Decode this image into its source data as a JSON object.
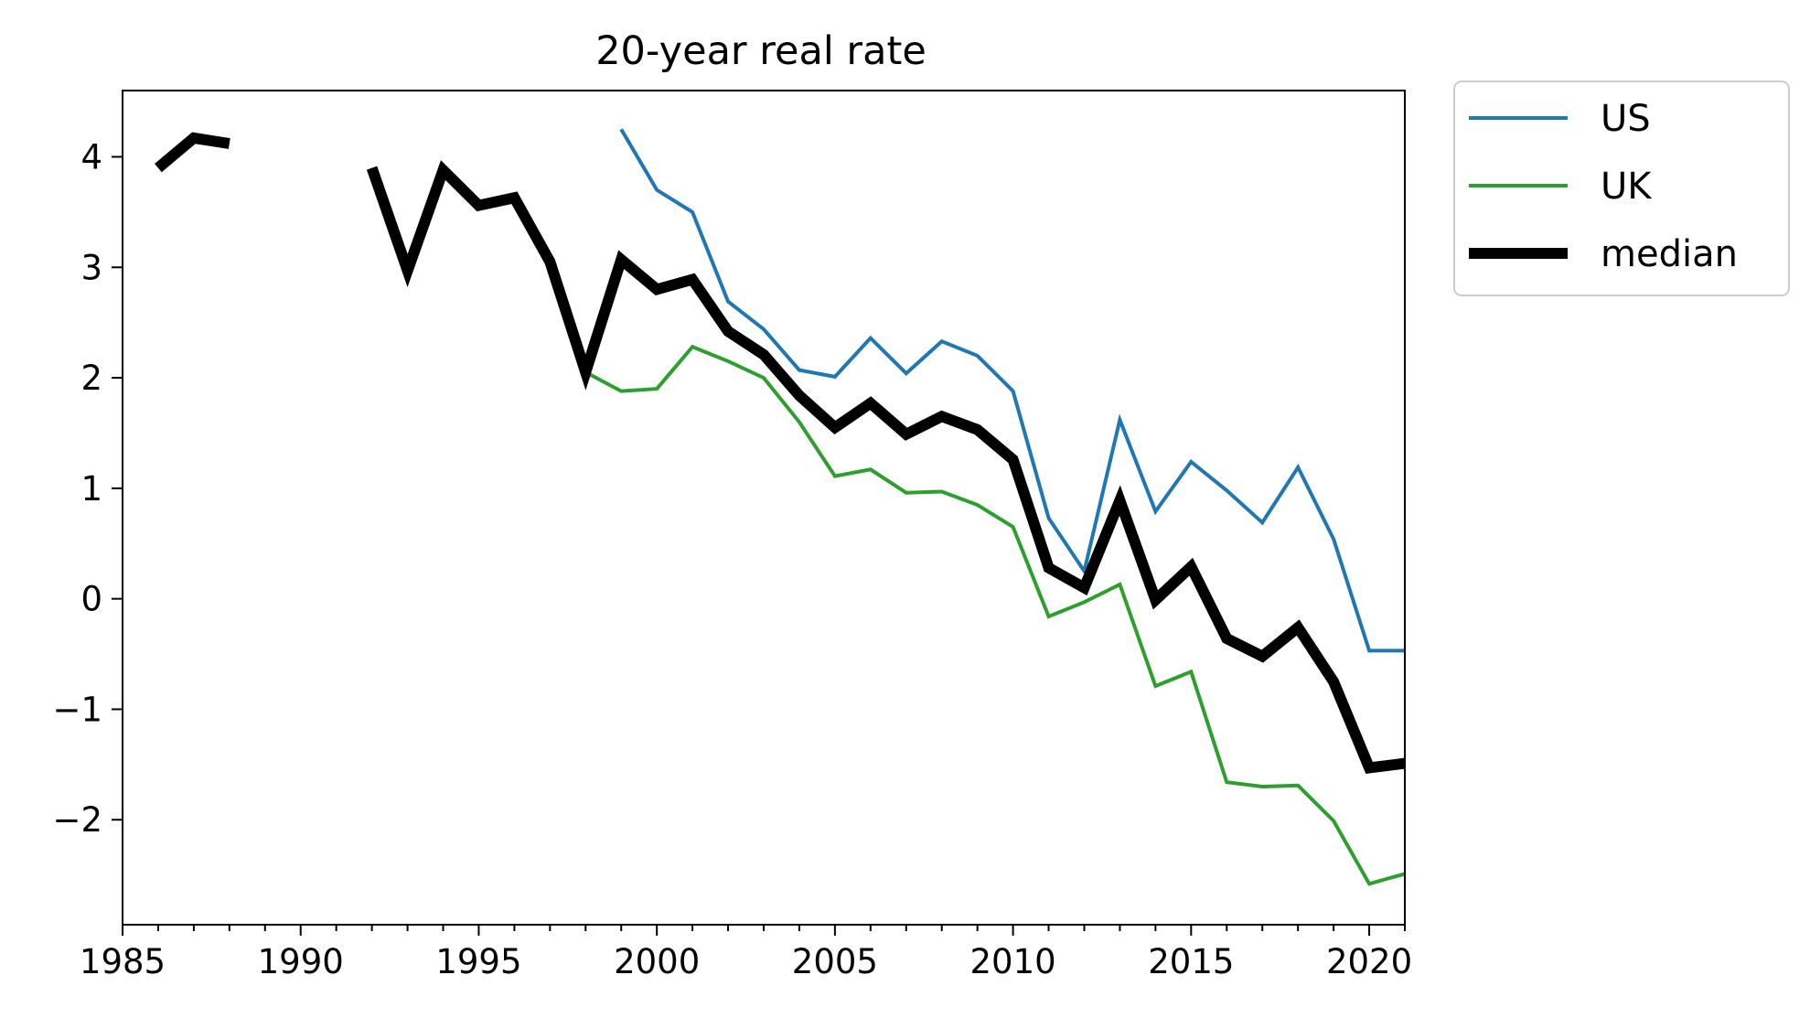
{
  "chart_data": {
    "type": "line",
    "title": "20-year real rate",
    "xlabel": "",
    "ylabel": "",
    "xlim": [
      1985,
      2021
    ],
    "ylim": [
      -2.95,
      4.6
    ],
    "xticks": [
      1985,
      1990,
      1995,
      2000,
      2005,
      2010,
      2015,
      2020
    ],
    "yticks": [
      4,
      3,
      2,
      1,
      0,
      -1,
      -2
    ],
    "ytick_labels": [
      "4",
      "3",
      "2",
      "1",
      "0",
      "−1",
      "−2"
    ],
    "grid": false,
    "legend": {
      "placement": "outside-top-right"
    },
    "series": [
      {
        "name": "US",
        "color": "#1f77b4",
        "points": [
          [
            1999,
            4.25
          ],
          [
            2000,
            3.7
          ],
          [
            2001,
            3.5
          ],
          [
            2002,
            2.69
          ],
          [
            2003,
            2.44
          ],
          [
            2004,
            2.07
          ],
          [
            2005,
            2.01
          ],
          [
            2006,
            2.36
          ],
          [
            2007,
            2.04
          ],
          [
            2008,
            2.33
          ],
          [
            2009,
            2.2
          ],
          [
            2010,
            1.88
          ],
          [
            2011,
            0.73
          ],
          [
            2012,
            0.25
          ],
          [
            2013,
            1.62
          ],
          [
            2014,
            0.79
          ],
          [
            2015,
            1.24
          ],
          [
            2016,
            0.98
          ],
          [
            2017,
            0.69
          ],
          [
            2018,
            1.19
          ],
          [
            2019,
            0.54
          ],
          [
            2020,
            -0.47
          ],
          [
            2021,
            -0.47
          ]
        ]
      },
      {
        "name": "UK",
        "color": "#2ca02c",
        "points": [
          [
            1998,
            2.05
          ],
          [
            1999,
            1.88
          ],
          [
            2000,
            1.9
          ],
          [
            2001,
            2.28
          ],
          [
            2002,
            2.15
          ],
          [
            2003,
            2.0
          ],
          [
            2004,
            1.6
          ],
          [
            2005,
            1.11
          ],
          [
            2006,
            1.17
          ],
          [
            2007,
            0.96
          ],
          [
            2008,
            0.97
          ],
          [
            2009,
            0.85
          ],
          [
            2010,
            0.65
          ],
          [
            2011,
            -0.16
          ],
          [
            2012,
            -0.03
          ],
          [
            2013,
            0.13
          ],
          [
            2014,
            -0.79
          ],
          [
            2015,
            -0.66
          ],
          [
            2016,
            -1.66
          ],
          [
            2017,
            -1.7
          ],
          [
            2018,
            -1.69
          ],
          [
            2019,
            -2.01
          ],
          [
            2020,
            -2.58
          ],
          [
            2021,
            -2.49
          ]
        ]
      },
      {
        "name": "median",
        "color": "#000000",
        "segments": [
          [
            [
              1986,
              3.9
            ],
            [
              1987,
              4.17
            ],
            [
              1988,
              4.12
            ]
          ],
          [
            [
              1992,
              3.9
            ],
            [
              1993,
              2.97
            ],
            [
              1994,
              3.88
            ],
            [
              1995,
              3.56
            ],
            [
              1996,
              3.63
            ],
            [
              1997,
              3.05
            ],
            [
              1998,
              2.05
            ],
            [
              1999,
              3.07
            ],
            [
              2000,
              2.8
            ],
            [
              2001,
              2.89
            ],
            [
              2002,
              2.42
            ],
            [
              2003,
              2.21
            ],
            [
              2004,
              1.84
            ],
            [
              2005,
              1.55
            ],
            [
              2006,
              1.77
            ],
            [
              2007,
              1.49
            ],
            [
              2008,
              1.65
            ],
            [
              2009,
              1.53
            ],
            [
              2010,
              1.26
            ],
            [
              2011,
              0.28
            ],
            [
              2012,
              0.1
            ],
            [
              2013,
              0.89
            ],
            [
              2014,
              -0.01
            ],
            [
              2015,
              0.29
            ],
            [
              2016,
              -0.36
            ],
            [
              2017,
              -0.52
            ],
            [
              2018,
              -0.26
            ],
            [
              2019,
              -0.75
            ],
            [
              2020,
              -1.53
            ],
            [
              2021,
              -1.49
            ]
          ]
        ]
      }
    ]
  }
}
